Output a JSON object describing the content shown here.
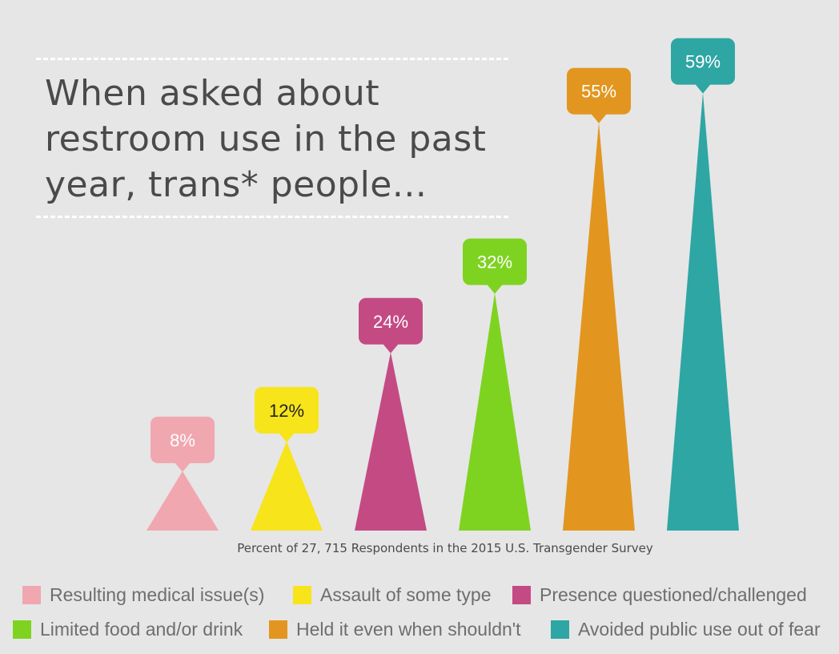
{
  "title": "When asked about restroom use in the past year, trans* people...",
  "title_lines": [
    "When asked about",
    "restroom use in the past",
    "year, trans* people..."
  ],
  "chart_data": {
    "type": "bar",
    "categories": [
      "Resulting medical issue(s)",
      "Assault of some type",
      "Presence questioned/challenged",
      "Limited food and/or drink",
      "Held it even when shouldn't",
      "Avoided public use out of fear"
    ],
    "values": [
      8,
      12,
      24,
      32,
      55,
      59
    ],
    "value_labels": [
      "8%",
      "12%",
      "24%",
      "32%",
      "55%",
      "59%"
    ],
    "colors": [
      "#f0a7b0",
      "#f7e41a",
      "#c44a84",
      "#7ed321",
      "#e2961f",
      "#2ea6a4"
    ],
    "label_text_colors": [
      "#ffffff",
      "#222222",
      "#ffffff",
      "#ffffff",
      "#ffffff",
      "#ffffff"
    ],
    "xlabel": "Percent of 27, 715 Respondents in the 2015 U.S. Transgender Survey",
    "ylabel": "",
    "ylim": [
      0,
      60
    ],
    "grid": false,
    "legend_placement": "bottom"
  }
}
